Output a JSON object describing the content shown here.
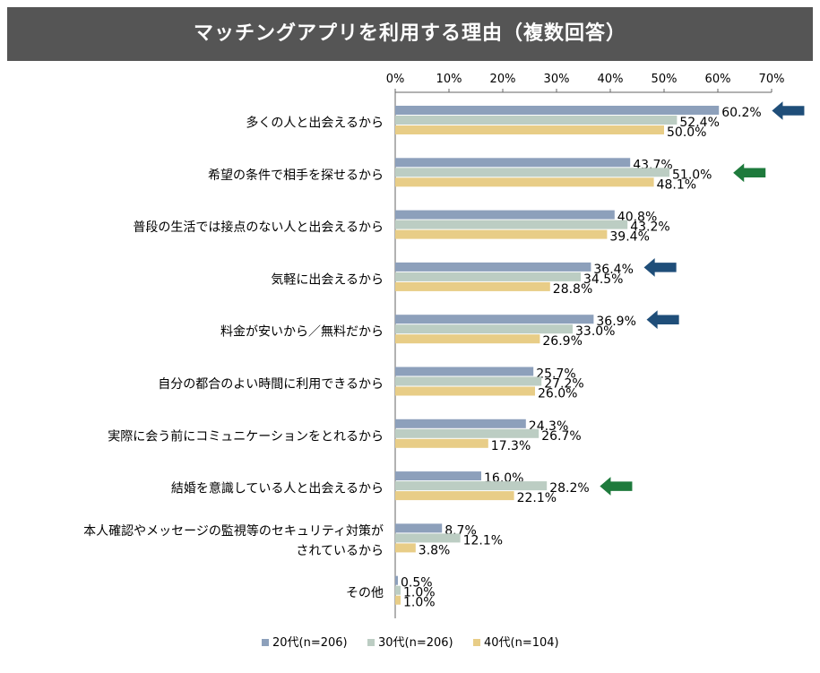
{
  "chart_data": {
    "type": "bar",
    "orientation": "horizontal",
    "title": "マッチングアプリを利用する理由（複数回答）",
    "xlim": [
      0,
      70
    ],
    "xticks": [
      "0%",
      "10%",
      "20%",
      "30%",
      "40%",
      "50%",
      "60%",
      "70%"
    ],
    "xtick_values": [
      0,
      10,
      20,
      30,
      40,
      50,
      60,
      70
    ],
    "categories": [
      [
        "多くの人と出会えるから"
      ],
      [
        "希望の条件で相手を探せるから"
      ],
      [
        "普段の生活では接点のない人と出会えるから"
      ],
      [
        "気軽に出会えるから"
      ],
      [
        "料金が安いから／無料だから"
      ],
      [
        "自分の都合のよい時間に利用できるから"
      ],
      [
        "実際に会う前にコミュニケーションをとれるから"
      ],
      [
        "結婚を意識している人と出会えるから"
      ],
      [
        "本人確認やメッセージの監視等のセキュリティ対策が",
        "されているから"
      ],
      [
        "その他"
      ]
    ],
    "series": [
      {
        "name": "20代(n=206)",
        "color": "#8da0bb",
        "values": [
          60.2,
          43.7,
          40.8,
          36.4,
          36.9,
          25.7,
          24.3,
          16.0,
          8.7,
          0.5
        ],
        "labels": [
          "60.2%",
          "43.7%",
          "40.8%",
          "36.4%",
          "36.9%",
          "25.7%",
          "24.3%",
          "16.0%",
          "8.7%",
          "0.5%"
        ]
      },
      {
        "name": "30代(n=206)",
        "color": "#bccdc3",
        "values": [
          52.4,
          51.0,
          43.2,
          34.5,
          33.0,
          27.2,
          26.7,
          28.2,
          12.1,
          1.0
        ],
        "labels": [
          "52.4%",
          "51.0%",
          "43.2%",
          "34.5%",
          "33.0%",
          "27.2%",
          "26.7%",
          "28.2%",
          "12.1%",
          "1.0%"
        ]
      },
      {
        "name": "40代(n=104)",
        "color": "#e8cd87",
        "values": [
          50.0,
          48.1,
          39.4,
          28.8,
          26.9,
          26.0,
          17.3,
          22.1,
          3.8,
          1.0
        ],
        "labels": [
          "50.0%",
          "48.1%",
          "39.4%",
          "28.8%",
          "26.9%",
          "26.0%",
          "17.3%",
          "22.1%",
          "3.8%",
          "1.0%"
        ]
      }
    ],
    "annotations": [
      {
        "category_index": 0,
        "series_index": 0,
        "type": "arrow",
        "color": "#1f4e79",
        "after_value": 60.2
      },
      {
        "category_index": 1,
        "series_index": 1,
        "type": "arrow",
        "color": "#1e7a3c",
        "after_value": 51.0
      },
      {
        "category_index": 3,
        "series_index": 0,
        "type": "arrow",
        "color": "#1f4e79",
        "after_value": 36.4
      },
      {
        "category_index": 4,
        "series_index": 0,
        "type": "arrow",
        "color": "#1f4e79",
        "after_value": 36.9
      },
      {
        "category_index": 7,
        "series_index": 1,
        "type": "arrow",
        "color": "#1e7a3c",
        "after_value": 28.2
      }
    ],
    "legend": {
      "position": "bottom"
    }
  },
  "colors": {
    "title_bg": "#555555",
    "title_text": "#ffffff",
    "axis": "#666666",
    "text": "#000000"
  }
}
